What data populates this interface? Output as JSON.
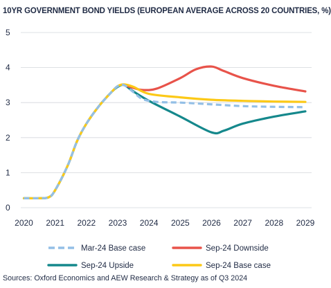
{
  "chart_data": {
    "type": "line",
    "title": "10YR GOVERNMENT BOND YIELDS (EUROPEAN AVERAGE ACROSS 20 COUNTRIES, %)",
    "x_ticks": [
      "2020",
      "2021",
      "2022",
      "2023",
      "2024",
      "2025",
      "2026",
      "2027",
      "2028",
      "2029"
    ],
    "y_ticks": [
      "0",
      "1",
      "2",
      "3",
      "4",
      "5"
    ],
    "xlim": [
      2019.9,
      2029.2
    ],
    "ylim": [
      0,
      5
    ],
    "grid": "horizontal",
    "legend_position": "bottom",
    "series": [
      {
        "name": "Mar-24 Base case",
        "color": "#93bfe6",
        "style": "dashed",
        "points": [
          [
            2020,
            0.27
          ],
          [
            2020.5,
            0.27
          ],
          [
            2020.8,
            0.3
          ],
          [
            2021,
            0.5
          ],
          [
            2021.4,
            1.2
          ],
          [
            2021.7,
            1.9
          ],
          [
            2022,
            2.4
          ],
          [
            2022.4,
            2.9
          ],
          [
            2022.8,
            3.3
          ],
          [
            2023,
            3.47
          ],
          [
            2023.2,
            3.5
          ],
          [
            2023.5,
            3.3
          ],
          [
            2023.8,
            3.1
          ],
          [
            2024.25,
            3.02
          ],
          [
            2025,
            3.0
          ],
          [
            2026,
            2.95
          ],
          [
            2027,
            2.9
          ],
          [
            2028,
            2.88
          ],
          [
            2029,
            2.87
          ]
        ]
      },
      {
        "name": "Sep-24 Downside",
        "color": "#e8534a",
        "style": "solid",
        "points": [
          [
            2023.2,
            3.5
          ],
          [
            2023.5,
            3.42
          ],
          [
            2023.8,
            3.36
          ],
          [
            2024.25,
            3.4
          ],
          [
            2025,
            3.7
          ],
          [
            2025.5,
            3.95
          ],
          [
            2026,
            4.03
          ],
          [
            2026.4,
            3.9
          ],
          [
            2027,
            3.7
          ],
          [
            2028,
            3.48
          ],
          [
            2029,
            3.32
          ]
        ]
      },
      {
        "name": "Sep-24 Upside",
        "color": "#15888c",
        "style": "solid",
        "points": [
          [
            2020,
            0.27
          ],
          [
            2020.5,
            0.27
          ],
          [
            2020.8,
            0.3
          ],
          [
            2021,
            0.5
          ],
          [
            2021.4,
            1.2
          ],
          [
            2021.7,
            1.9
          ],
          [
            2022,
            2.4
          ],
          [
            2022.4,
            2.9
          ],
          [
            2022.8,
            3.3
          ],
          [
            2023,
            3.45
          ],
          [
            2023.2,
            3.5
          ],
          [
            2023.5,
            3.32
          ],
          [
            2024,
            3.05
          ],
          [
            2025,
            2.6
          ],
          [
            2026,
            2.15
          ],
          [
            2026.4,
            2.2
          ],
          [
            2027,
            2.4
          ],
          [
            2028,
            2.6
          ],
          [
            2029,
            2.75
          ]
        ]
      },
      {
        "name": "Sep-24 Base case",
        "color": "#fcc917",
        "style": "solid",
        "points": [
          [
            2020,
            0.27
          ],
          [
            2020.5,
            0.27
          ],
          [
            2020.8,
            0.3
          ],
          [
            2021,
            0.5
          ],
          [
            2021.4,
            1.2
          ],
          [
            2021.7,
            1.9
          ],
          [
            2022,
            2.4
          ],
          [
            2022.4,
            2.9
          ],
          [
            2022.8,
            3.3
          ],
          [
            2023,
            3.47
          ],
          [
            2023.2,
            3.52
          ],
          [
            2023.5,
            3.45
          ],
          [
            2024,
            3.25
          ],
          [
            2025,
            3.15
          ],
          [
            2026,
            3.08
          ],
          [
            2027,
            3.05
          ],
          [
            2028,
            3.03
          ],
          [
            2029,
            3.02
          ]
        ]
      }
    ],
    "legend": [
      {
        "label": "Mar-24 Base case",
        "series": 0
      },
      {
        "label": "Sep-24 Downside",
        "series": 1
      },
      {
        "label": "Sep-24 Upside",
        "series": 2
      },
      {
        "label": "Sep-24 Base case",
        "series": 3
      }
    ]
  },
  "source": "Sources: Oxford Economics and AEW Research & Strategy as of Q3 2024"
}
